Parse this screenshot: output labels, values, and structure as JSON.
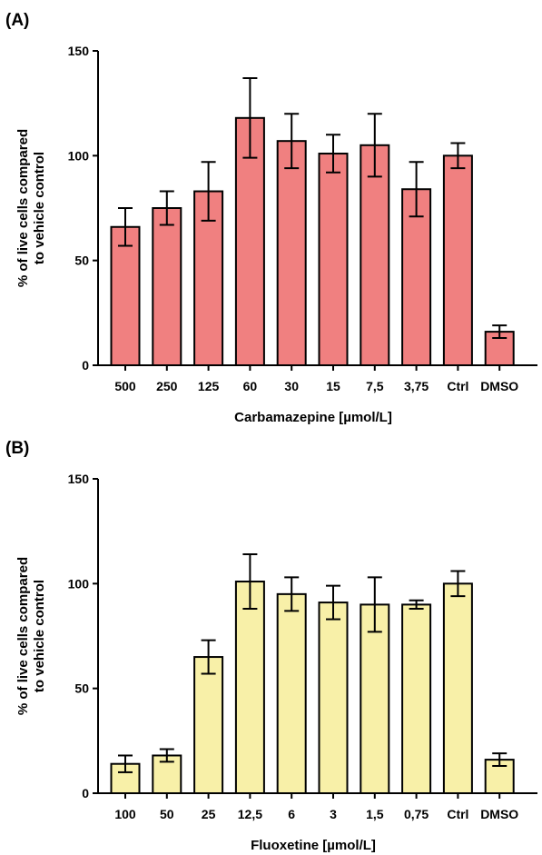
{
  "chart_data": [
    {
      "type": "bar",
      "panel_label": "(A)",
      "title": "",
      "xlabel": "Carbamazepine [µmol/L]",
      "ylabel_lines": [
        "% of live cells compared",
        "to vehicle control"
      ],
      "ylim": [
        0,
        150
      ],
      "yticks": [
        0,
        50,
        100,
        150
      ],
      "grid": false,
      "bar_color": "#f08080",
      "categories": [
        "500",
        "250",
        "125",
        "60",
        "30",
        "15",
        "7,5",
        "3,75",
        "Ctrl",
        "DMSO"
      ],
      "values": [
        66,
        75,
        83,
        118,
        107,
        101,
        105,
        84,
        100,
        16
      ],
      "error": [
        9,
        8,
        14,
        19,
        13,
        9,
        15,
        13,
        6,
        3
      ]
    },
    {
      "type": "bar",
      "panel_label": "(B)",
      "title": "",
      "xlabel": "Fluoxetine [µmol/L]",
      "ylabel_lines": [
        "% of live cells compared",
        "to vehicle control"
      ],
      "ylim": [
        0,
        150
      ],
      "yticks": [
        0,
        50,
        100,
        150
      ],
      "grid": false,
      "bar_color": "#f8f0a8",
      "categories": [
        "100",
        "50",
        "25",
        "12,5",
        "6",
        "3",
        "1,5",
        "0,75",
        "Ctrl",
        "DMSO"
      ],
      "values": [
        14,
        18,
        65,
        101,
        95,
        91,
        90,
        90,
        100,
        16
      ],
      "error": [
        4,
        3,
        8,
        13,
        8,
        8,
        13,
        2,
        6,
        3
      ]
    }
  ]
}
